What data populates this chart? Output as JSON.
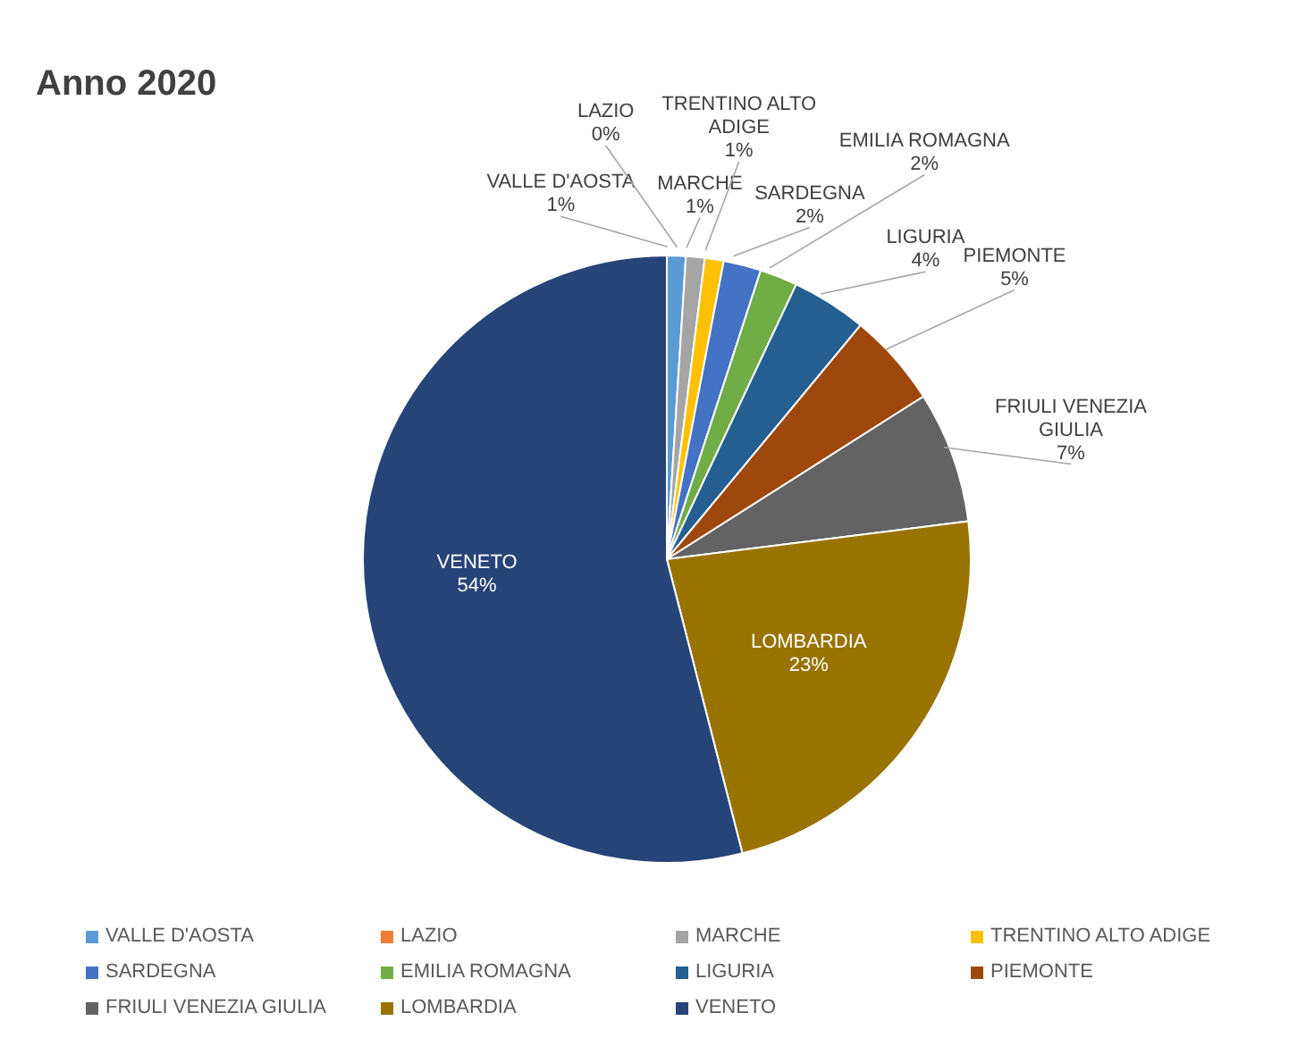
{
  "chart_data": {
    "type": "pie",
    "title": "Anno 2020",
    "categories": [
      "VALLE D'AOSTA",
      "LAZIO",
      "MARCHE",
      "TRENTINO ALTO ADIGE",
      "SARDEGNA",
      "EMILIA ROMAGNA",
      "LIGURIA",
      "PIEMONTE",
      "FRIULI VENEZIA GIULIA",
      "LOMBARDIA",
      "VENETO"
    ],
    "values": [
      1,
      0,
      1,
      1,
      2,
      2,
      4,
      5,
      7,
      23,
      54
    ],
    "value_labels": [
      "1%",
      "0%",
      "1%",
      "1%",
      "2%",
      "2%",
      "4%",
      "5%",
      "7%",
      "23%",
      "54%"
    ],
    "colors": [
      "#5b9bd5",
      "#ed7d31",
      "#a5a5a5",
      "#ffc000",
      "#4472c4",
      "#70ad47",
      "#255e91",
      "#9e480e",
      "#636363",
      "#997300",
      "#264478"
    ],
    "legend": "bottom"
  }
}
